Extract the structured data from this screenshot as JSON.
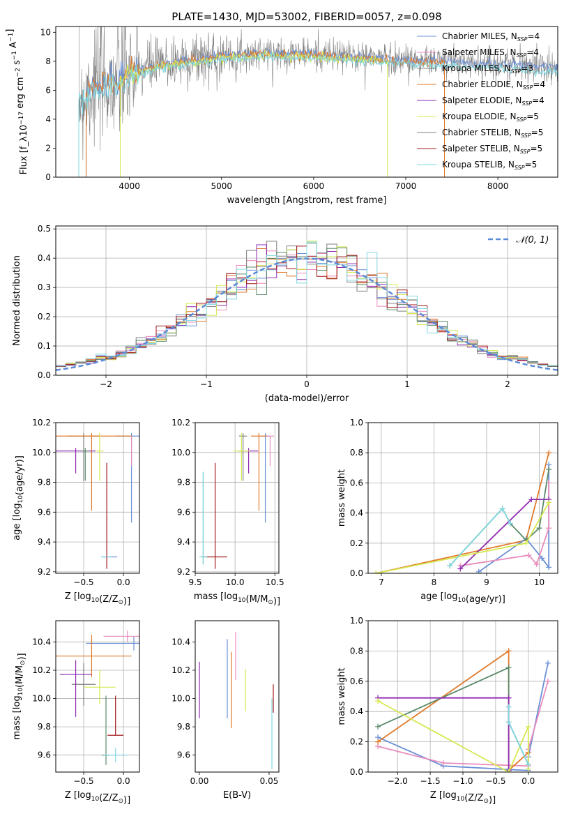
{
  "figure": {
    "title": "PLATE=1430, MJD=53002, FIBERID=0057, z=0.098"
  },
  "colors": {
    "chabrier_miles": "#6a8fd6",
    "salpeter_miles": "#e88bbd",
    "kroupa_miles": "#7f7f7f",
    "chabrier_elodie": "#e07a2a",
    "salpeter_elodie": "#8e2bb0",
    "kroupa_elodie": "#d6e84f",
    "chabrier_stelib": "#5a8a6a",
    "salpeter_stelib": "#a01818",
    "kroupa_stelib": "#7fd8e0",
    "gaussian": "#5b8ad6",
    "grid": "#b0b0b0"
  },
  "chart_data": [
    {
      "id": "spectrum",
      "type": "line",
      "title": "PLATE=1430, MJD=53002, FIBERID=0057, z=0.098",
      "xlabel": "wavelength [Angstrom, rest frame]",
      "ylabel": "Flux [f_λ10^-17 erg cm^-2 s^-1 A^-1]",
      "xlim": [
        3200,
        8650
      ],
      "ylim": [
        0,
        10.4
      ],
      "xticks": [
        4000,
        5000,
        6000,
        7000,
        8000
      ],
      "yticks": [
        0,
        2,
        4,
        6,
        8,
        10
      ],
      "grid": false,
      "legend_position": "right",
      "legend": [
        {
          "label": "Chabrier MILES, N",
          "sub": "SSP",
          "suffix": "=4",
          "color": "chabrier_miles"
        },
        {
          "label": "Salpeter MILES, N",
          "sub": "SSP",
          "suffix": "=4",
          "color": "salpeter_miles"
        },
        {
          "label": "Kroupa MILES, N",
          "sub": "SSP",
          "suffix": "=3",
          "color": "kroupa_miles"
        },
        {
          "label": "Chabrier ELODIE, N",
          "sub": "SSP",
          "suffix": "=4",
          "color": "chabrier_elodie"
        },
        {
          "label": "Salpeter ELODIE, N",
          "sub": "SSP",
          "suffix": "=4",
          "color": "salpeter_elodie"
        },
        {
          "label": "Kroupa ELODIE, N",
          "sub": "SSP",
          "suffix": "=5",
          "color": "kroupa_elodie"
        },
        {
          "label": "Chabrier STELIB, N",
          "sub": "SSP",
          "suffix": "=5",
          "color": "kroupa_miles"
        },
        {
          "label": "Salpeter STELIB, N",
          "sub": "SSP",
          "suffix": "=5",
          "color": "salpeter_stelib"
        },
        {
          "label": "Kroupa STELIB, N",
          "sub": "SSP",
          "suffix": "=5",
          "color": "kroupa_stelib"
        }
      ],
      "data_range": [
        3450,
        8650
      ],
      "series_start_end": [
        {
          "color": "chabrier_miles",
          "x": [
            3530,
            8650
          ]
        },
        {
          "color": "chabrier_elodie",
          "x": [
            3530,
            7420
          ]
        },
        {
          "color": "kroupa_elodie",
          "x": [
            3900,
            6800
          ]
        },
        {
          "color": "kroupa_stelib",
          "x": [
            3450,
            8650
          ]
        }
      ],
      "continuum_y": [
        [
          3450,
          5.5
        ],
        [
          3600,
          6.3
        ],
        [
          3900,
          6.8
        ],
        [
          4200,
          7.6
        ],
        [
          4500,
          8.0
        ],
        [
          5000,
          8.4
        ],
        [
          5500,
          8.6
        ],
        [
          6000,
          8.5
        ],
        [
          6500,
          8.3
        ],
        [
          7000,
          8.1
        ],
        [
          7500,
          8.0
        ],
        [
          8000,
          7.8
        ],
        [
          8650,
          7.6
        ]
      ]
    },
    {
      "id": "residuals",
      "type": "line",
      "xlabel": "(data-model)/error",
      "ylabel": "Normed distribution",
      "xlim": [
        -2.5,
        2.5
      ],
      "ylim": [
        0,
        0.51
      ],
      "xticks": [
        -2,
        -1,
        0,
        1,
        2
      ],
      "yticks": [
        0.0,
        0.1,
        0.2,
        0.3,
        0.4,
        0.5
      ],
      "grid": true,
      "legend_position": "upper right",
      "legend": [
        {
          "label": "N(0, 1)",
          "color": "gaussian",
          "style": "dashed"
        }
      ],
      "bin_width": 0.1
    },
    {
      "id": "age_vs_Z",
      "type": "scatter",
      "xlabel": "Z [log10(Z/Z⊙)]",
      "ylabel": "age [log10(age/yr)]",
      "xlim": [
        -0.85,
        0.2
      ],
      "ylim": [
        9.19,
        10.2
      ],
      "xticks": [
        -0.5,
        0.0
      ],
      "yticks": [
        9.2,
        9.4,
        9.6,
        9.8,
        10.0,
        10.2
      ],
      "grid": true,
      "points": [
        {
          "color": "chabrier_miles",
          "x": 0.1,
          "y": 10.11,
          "xerr": 0.2,
          "yerr": [
            0.58,
            0.02
          ]
        },
        {
          "color": "chabrier_miles",
          "x": -0.18,
          "y": 9.3,
          "xerr": 0.1,
          "yerr": [
            0,
            0
          ]
        },
        {
          "color": "salpeter_miles",
          "x": 0.1,
          "y": 10.11,
          "xerr": 0.0,
          "yerr": [
            0.2,
            0.0
          ]
        },
        {
          "color": "kroupa_miles",
          "x": -0.5,
          "y": 10.11,
          "xerr": 0.2,
          "yerr": [
            0.3,
            0.02
          ]
        },
        {
          "color": "chabrier_elodie",
          "x": -0.4,
          "y": 10.11,
          "xerr": 0.5,
          "yerr": [
            0.5,
            0.02
          ]
        },
        {
          "color": "salpeter_elodie",
          "x": -0.6,
          "y": 10.01,
          "xerr": 0.25,
          "yerr": [
            0.15,
            0.02
          ]
        },
        {
          "color": "kroupa_elodie",
          "x": -0.3,
          "y": 10.01,
          "xerr": 0.05,
          "yerr": [
            0.2,
            0.12
          ]
        },
        {
          "color": "chabrier_stelib",
          "x": -0.48,
          "y": 10.01,
          "xerr": 0.05,
          "yerr": [
            0.2,
            0.02
          ]
        },
        {
          "color": "salpeter_stelib",
          "x": -0.21,
          "y": 9.3,
          "xerr": 0.02,
          "yerr": [
            0.08,
            0.63
          ]
        },
        {
          "color": "kroupa_stelib",
          "x": -0.22,
          "y": 9.3,
          "xerr": 0.06,
          "yerr": [
            0,
            0
          ]
        }
      ]
    },
    {
      "id": "age_vs_mass",
      "type": "scatter",
      "xlabel": "mass [log10(M/M⊙)]",
      "ylabel": "",
      "xlim": [
        9.5,
        10.55
      ],
      "ylim": [
        9.19,
        10.2
      ],
      "xticks": [
        9.5,
        10.0,
        10.5
      ],
      "yticks": [
        9.2,
        9.4,
        9.6,
        9.8,
        10.0,
        10.2
      ],
      "grid": true,
      "points": [
        {
          "color": "chabrier_miles",
          "x": 10.38,
          "y": 10.11,
          "xerr": 0.05,
          "yerr": [
            0.58,
            0.02
          ]
        },
        {
          "color": "salpeter_miles",
          "x": 10.44,
          "y": 10.11,
          "xerr": 0.05,
          "yerr": [
            0.2,
            0.0
          ]
        },
        {
          "color": "kroupa_miles",
          "x": 10.1,
          "y": 10.11,
          "xerr": 0.05,
          "yerr": [
            0.3,
            0.02
          ]
        },
        {
          "color": "chabrier_elodie",
          "x": 10.3,
          "y": 10.11,
          "xerr": 0.1,
          "yerr": [
            0.5,
            0.02
          ]
        },
        {
          "color": "salpeter_elodie",
          "x": 10.17,
          "y": 10.01,
          "xerr": 0.12,
          "yerr": [
            0.15,
            0.02
          ]
        },
        {
          "color": "kroupa_elodie",
          "x": 10.08,
          "y": 10.01,
          "xerr": 0.1,
          "yerr": [
            0.2,
            0.12
          ]
        },
        {
          "color": "chabrier_stelib",
          "x": 9.6,
          "y": 9.3,
          "xerr": 0.02,
          "yerr": [
            0.05,
            0.57
          ]
        },
        {
          "color": "salpeter_stelib",
          "x": 9.75,
          "y": 9.3,
          "xerr": 0.15,
          "yerr": [
            0.08,
            0.63
          ]
        },
        {
          "color": "kroupa_stelib",
          "x": 9.6,
          "y": 9.3,
          "xerr": 0.05,
          "yerr": [
            0.05,
            0.57
          ]
        }
      ]
    },
    {
      "id": "weight_vs_age",
      "type": "line",
      "xlabel": "age [log10(age/yr)]",
      "ylabel": "mass weight",
      "xlim": [
        6.75,
        10.35
      ],
      "ylim": [
        0,
        1.0
      ],
      "xticks": [
        7,
        8,
        9,
        10
      ],
      "yticks": [
        0.0,
        0.2,
        0.4,
        0.6,
        0.8,
        1.0
      ],
      "grid": true,
      "series": [
        {
          "color": "chabrier_elodie",
          "x": [
            6.9,
            9.75,
            10.18
          ],
          "y": [
            0.0,
            0.22,
            0.8
          ]
        },
        {
          "color": "chabrier_miles",
          "x": [
            8.85,
            9.75,
            10.05,
            10.18,
            10.18
          ],
          "y": [
            0.01,
            0.23,
            0.1,
            0.04,
            0.72
          ]
        },
        {
          "color": "salpeter_miles",
          "x": [
            8.5,
            9.8,
            9.95,
            10.18,
            10.18
          ],
          "y": [
            0.05,
            0.12,
            0.06,
            0.3,
            0.6
          ]
        },
        {
          "color": "chabrier_stelib",
          "x": [
            8.3,
            9.3,
            9.45,
            9.75,
            10.0,
            10.18
          ],
          "y": [
            0.05,
            0.43,
            0.33,
            0.22,
            0.3,
            0.69
          ]
        },
        {
          "color": "salpeter_elodie",
          "x": [
            8.5,
            9.85,
            10.18
          ],
          "y": [
            0.03,
            0.49,
            0.49
          ]
        },
        {
          "color": "kroupa_elodie",
          "x": [
            6.9,
            9.75,
            10.18
          ],
          "y": [
            0.0,
            0.2,
            0.47
          ]
        },
        {
          "color": "kroupa_stelib",
          "x": [
            8.3,
            9.3,
            9.45
          ],
          "y": [
            0.05,
            0.43,
            0.33
          ]
        }
      ]
    },
    {
      "id": "mass_vs_Z",
      "type": "scatter",
      "xlabel": "Z [log10(Z/Z⊙)]",
      "ylabel": "mass [log10(M/M⊙)]",
      "xlim": [
        -0.85,
        0.2
      ],
      "ylim": [
        9.48,
        10.55
      ],
      "xticks": [
        -0.5,
        0.0
      ],
      "yticks": [
        9.6,
        9.8,
        10.0,
        10.2,
        10.4
      ],
      "grid": true,
      "points": [
        {
          "color": "chabrier_miles",
          "x": 0.13,
          "y": 10.39,
          "xerr": 0.6,
          "yerr": [
            0.05,
            0.05
          ]
        },
        {
          "color": "salpeter_miles",
          "x": 0.05,
          "y": 10.44,
          "xerr": 0.3,
          "yerr": [
            0.04,
            0.04
          ]
        },
        {
          "color": "kroupa_miles",
          "x": -0.5,
          "y": 10.1,
          "xerr": 0.15,
          "yerr": [
            0.15,
            0.15
          ]
        },
        {
          "color": "chabrier_elodie",
          "x": -0.4,
          "y": 10.3,
          "xerr": 0.5,
          "yerr": [
            0.15,
            0.15
          ]
        },
        {
          "color": "salpeter_elodie",
          "x": -0.6,
          "y": 10.17,
          "xerr": 0.2,
          "yerr": [
            0.3,
            0.1
          ]
        },
        {
          "color": "kroupa_elodie",
          "x": -0.3,
          "y": 10.08,
          "xerr": 0.2,
          "yerr": [
            0.12,
            0.12
          ]
        },
        {
          "color": "chabrier_stelib",
          "x": -0.22,
          "y": 9.6,
          "xerr": 0.05,
          "yerr": [
            0.07,
            0.42
          ]
        },
        {
          "color": "salpeter_stelib",
          "x": -0.1,
          "y": 9.74,
          "xerr": 0.1,
          "yerr": [
            0.0,
            0.28
          ]
        },
        {
          "color": "kroupa_stelib",
          "x": -0.1,
          "y": 9.6,
          "xerr": 0.15,
          "yerr": [
            0.05,
            0.05
          ]
        }
      ]
    },
    {
      "id": "mass_vs_ebv",
      "type": "scatter",
      "xlabel": "E(B-V)",
      "ylabel": "",
      "xlim": [
        -0.003,
        0.057
      ],
      "ylim": [
        9.48,
        10.55
      ],
      "xticks": [
        0.0,
        0.05
      ],
      "yticks": [
        9.6,
        9.8,
        10.0,
        10.2,
        10.4
      ],
      "grid": false,
      "points": [
        {
          "color": "salpeter_elodie",
          "x": 0.0,
          "y": 10.06,
          "yerr": [
            0.2,
            0.2
          ]
        },
        {
          "color": "chabrier_miles",
          "x": 0.02,
          "y": 10.14,
          "yerr": [
            0.28,
            0.28
          ]
        },
        {
          "color": "chabrier_elodie",
          "x": 0.023,
          "y": 10.06,
          "yerr": [
            0.27,
            0.27
          ]
        },
        {
          "color": "salpeter_miles",
          "x": 0.026,
          "y": 10.3,
          "yerr": [
            0.17,
            0.17
          ]
        },
        {
          "color": "kroupa_elodie",
          "x": 0.033,
          "y": 10.06,
          "yerr": [
            0.15,
            0.15
          ]
        },
        {
          "color": "salpeter_stelib",
          "x": 0.053,
          "y": 10.0,
          "yerr": [
            0.1,
            0.1
          ]
        },
        {
          "color": "kroupa_stelib",
          "x": 0.052,
          "y": 9.75,
          "yerr": [
            0.25,
            0.25
          ]
        }
      ]
    },
    {
      "id": "weight_vs_Z",
      "type": "line",
      "xlabel": "Z [log10(Z/Z⊙)]",
      "ylabel": "mass weight",
      "xlim": [
        -2.45,
        0.45
      ],
      "ylim": [
        0,
        1.0
      ],
      "xticks": [
        -2.0,
        -1.5,
        -1.0,
        -0.5,
        0.0
      ],
      "yticks": [
        0.0,
        0.2,
        0.4,
        0.6,
        0.8,
        1.0
      ],
      "grid": true,
      "series": [
        {
          "color": "chabrier_miles",
          "x": [
            -2.3,
            -1.3,
            0.0,
            0.0,
            0.3
          ],
          "y": [
            0.23,
            0.04,
            0.01,
            0.1,
            0.72
          ]
        },
        {
          "color": "salpeter_miles",
          "x": [
            -2.3,
            -1.3,
            0.0,
            0.0,
            0.3
          ],
          "y": [
            0.17,
            0.06,
            0.04,
            0.15,
            0.6
          ]
        },
        {
          "color": "chabrier_elodie",
          "x": [
            -2.3,
            -0.3,
            -0.3,
            0.0
          ],
          "y": [
            0.2,
            0.8,
            0.01,
            0.13
          ]
        },
        {
          "color": "chabrier_stelib",
          "x": [
            -2.3,
            -0.3,
            -0.3,
            0.0
          ],
          "y": [
            0.3,
            0.69,
            0.33,
            0.05
          ]
        },
        {
          "color": "salpeter_elodie",
          "x": [
            -2.3,
            -0.3,
            -0.3
          ],
          "y": [
            0.49,
            0.49,
            0.01
          ]
        },
        {
          "color": "kroupa_elodie",
          "x": [
            -2.3,
            -0.3,
            0.0,
            0.0
          ],
          "y": [
            0.47,
            0.0,
            0.3,
            0.02
          ]
        },
        {
          "color": "kroupa_stelib",
          "x": [
            -0.3,
            -0.3,
            0.0
          ],
          "y": [
            0.43,
            0.33,
            0.05
          ]
        }
      ]
    }
  ]
}
